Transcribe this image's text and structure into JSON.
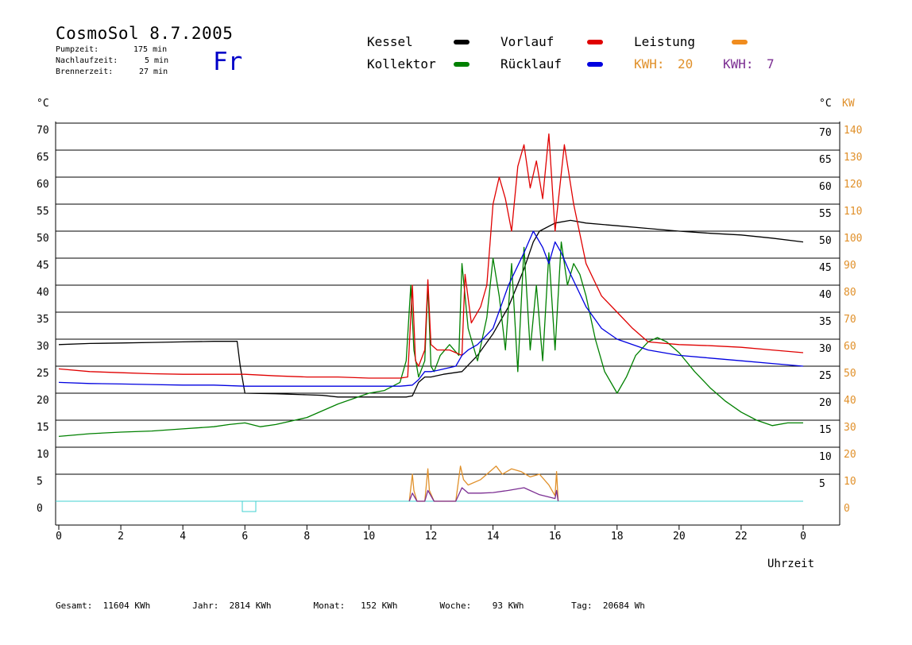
{
  "header": {
    "title": "CosmoSol 8.7.2005",
    "day": "Fr",
    "stats": [
      {
        "label": "Pumpzeit:",
        "value": "175 min"
      },
      {
        "label": "Nachlaufzeit:",
        "value": "5 min"
      },
      {
        "label": "Brennerzeit:",
        "value": "27 min"
      }
    ]
  },
  "legend": {
    "items": [
      {
        "label": "Kessel",
        "color": "#000000"
      },
      {
        "label": "Kollektor",
        "color": "#008000"
      },
      {
        "label": "Vorlauf",
        "color": "#e00000"
      },
      {
        "label": "Rücklauf",
        "color": "#0000e0"
      },
      {
        "label": "Leistung",
        "color": "#f08c1e"
      }
    ],
    "kwh_orange": {
      "label": "KWH:",
      "value": "20",
      "color": "#e0902a"
    },
    "kwh_purple": {
      "label": "KWH:",
      "value": "7",
      "color": "#7b2e92"
    }
  },
  "footer": {
    "gesamt": {
      "label": "Gesamt:",
      "value": "11604 KWh"
    },
    "jahr": {
      "label": "Jahr:",
      "value": "2814 KWh"
    },
    "monat": {
      "label": "Monat:",
      "value": "152 KWh"
    },
    "woche": {
      "label": "Woche:",
      "value": "93 KWh"
    },
    "tag": {
      "label": "Tag:",
      "value": "20684 Wh"
    }
  },
  "chart_data": {
    "type": "line",
    "xlabel": "Uhrzeit",
    "ylabel_left": "°C",
    "ylabel_right": "°C",
    "ylabel_right2": "KW",
    "xlim": [
      0,
      24
    ],
    "ylim": [
      -2,
      72
    ],
    "x_ticks": [
      "0",
      "2",
      "4",
      "6",
      "8",
      "10",
      "12",
      "14",
      "16",
      "18",
      "20",
      "22",
      "0"
    ],
    "y_ticks_left": [
      "0",
      "5",
      "10",
      "15",
      "20",
      "25",
      "30",
      "35",
      "40",
      "45",
      "50",
      "55",
      "60",
      "65",
      "70"
    ],
    "y_ticks_right": [
      "5",
      "10",
      "15",
      "20",
      "25",
      "30",
      "35",
      "40",
      "45",
      "50",
      "55",
      "60",
      "65",
      "70"
    ],
    "y_ticks_kw": [
      "0",
      "10",
      "20",
      "30",
      "40",
      "50",
      "60",
      "70",
      "80",
      "90",
      "100",
      "110",
      "120",
      "130",
      "140"
    ],
    "grid": true,
    "colors": {
      "grid": "#000000",
      "right_axis_kw": "#e0902a",
      "zero_line": "#40d0d0",
      "purple": "#7b2e92"
    },
    "series": [
      {
        "name": "Kessel",
        "color": "#000000",
        "x": [
          0,
          1,
          2,
          3,
          4,
          5,
          5.75,
          5.85,
          6,
          7,
          8,
          8.5,
          9,
          10,
          11,
          11.2,
          11.4,
          11.6,
          11.8,
          12,
          12.4,
          13,
          13.5,
          14,
          14.5,
          15,
          15.3,
          15.5,
          16,
          16.5,
          17,
          18,
          19,
          20,
          21,
          22,
          23,
          24
        ],
        "y": [
          29,
          29.2,
          29.3,
          29.4,
          29.5,
          29.6,
          29.6,
          25,
          20,
          19.9,
          19.7,
          19.6,
          19.3,
          19.3,
          19.3,
          19.3,
          19.5,
          22,
          23,
          23,
          23.5,
          24,
          27,
          31,
          36,
          43,
          48,
          50,
          51.5,
          52,
          51.5,
          51,
          50.5,
          50,
          49.6,
          49.3,
          48.7,
          48
        ]
      },
      {
        "name": "Kollektor",
        "color": "#008000",
        "x": [
          0,
          1,
          2,
          3,
          4,
          5,
          5.5,
          6,
          6.5,
          7,
          8,
          9,
          10,
          10.5,
          11,
          11.2,
          11.35,
          11.45,
          11.6,
          11.8,
          11.9,
          12,
          12.1,
          12.3,
          12.6,
          12.9,
          13,
          13.2,
          13.5,
          13.8,
          14,
          14.2,
          14.4,
          14.6,
          14.8,
          15,
          15.2,
          15.4,
          15.6,
          15.8,
          16,
          16.2,
          16.4,
          16.6,
          16.8,
          17,
          17.3,
          17.6,
          18,
          18.3,
          18.6,
          19,
          19.3,
          19.6,
          20,
          20.5,
          21,
          21.5,
          22,
          22.5,
          23,
          23.5,
          24
        ],
        "y": [
          12,
          12.5,
          12.8,
          13,
          13.4,
          13.8,
          14.2,
          14.5,
          13.8,
          14.2,
          15.5,
          18,
          20,
          20.5,
          22,
          26,
          40,
          28,
          23,
          26,
          40,
          25,
          24,
          27,
          29,
          27,
          44,
          32,
          26,
          34,
          45,
          38,
          28,
          44,
          24,
          47,
          28,
          40,
          26,
          46,
          28,
          48,
          40,
          44,
          42,
          38,
          30,
          24,
          20,
          23,
          27,
          29.5,
          30.3,
          29.5,
          27.5,
          24,
          21,
          18.5,
          16.5,
          15,
          14,
          14.5,
          14.5
        ]
      },
      {
        "name": "Vorlauf",
        "color": "#e00000",
        "x": [
          0,
          1,
          2,
          3,
          4,
          5,
          6,
          7,
          8,
          9,
          10,
          11,
          11.25,
          11.4,
          11.5,
          11.6,
          11.8,
          11.9,
          12,
          12.2,
          12.6,
          13,
          13.1,
          13.3,
          13.6,
          13.8,
          14,
          14.2,
          14.4,
          14.6,
          14.8,
          15,
          15.2,
          15.4,
          15.6,
          15.8,
          16,
          16.3,
          16.6,
          17,
          17.5,
          18,
          18.5,
          19,
          20,
          21,
          22,
          23,
          24
        ],
        "y": [
          24.5,
          24,
          23.8,
          23.6,
          23.5,
          23.5,
          23.5,
          23.2,
          23,
          23,
          22.8,
          22.8,
          23,
          40,
          26,
          25,
          28,
          41,
          29,
          28,
          28,
          27,
          42,
          33,
          36,
          40,
          55,
          60,
          56,
          50,
          62,
          66,
          58,
          63,
          56,
          68,
          50,
          66,
          55,
          44,
          38,
          35,
          32,
          29.5,
          29,
          28.8,
          28.5,
          28,
          27.5
        ]
      },
      {
        "name": "Rücklauf",
        "color": "#0000e0",
        "x": [
          0,
          1,
          2,
          3,
          4,
          5,
          6,
          7,
          8,
          9,
          10,
          11,
          11.4,
          11.6,
          11.8,
          12,
          12.2,
          12.8,
          13,
          13.2,
          13.5,
          14,
          14.5,
          15,
          15.3,
          15.6,
          15.8,
          16,
          16.2,
          16.5,
          17,
          17.5,
          18,
          19,
          20,
          21,
          22,
          23,
          24
        ],
        "y": [
          22,
          21.8,
          21.7,
          21.6,
          21.5,
          21.5,
          21.3,
          21.3,
          21.3,
          21.3,
          21.3,
          21.3,
          21.5,
          22.5,
          24,
          24,
          24.2,
          25,
          27,
          28,
          29,
          32,
          40,
          46,
          50,
          47,
          44,
          48,
          46,
          42,
          36,
          32,
          30,
          28,
          27,
          26.5,
          26,
          25.5,
          25
        ]
      },
      {
        "name": "Leistung",
        "color": "#e0902a",
        "x": [
          11.3,
          11.4,
          11.45,
          11.55,
          11.8,
          11.9,
          11.95,
          12.1,
          12.8,
          12.95,
          13.05,
          13.2,
          13.6,
          14,
          14.1,
          14.3,
          14.6,
          14.9,
          15.2,
          15.5,
          15.8,
          16,
          16.05,
          16.1
        ],
        "y": [
          0,
          5,
          2,
          0,
          0,
          6,
          2,
          0,
          0,
          6.5,
          4,
          3,
          4,
          6,
          6.5,
          5,
          6,
          5.5,
          4.5,
          5,
          3,
          1,
          5.5,
          0
        ]
      },
      {
        "name": "Leistung2",
        "color": "#7b2e92",
        "x": [
          11.3,
          11.4,
          11.55,
          11.8,
          11.9,
          12.1,
          12.8,
          13.0,
          13.2,
          13.6,
          14,
          14.5,
          15,
          15.5,
          16,
          16.05,
          16.1
        ],
        "y": [
          0,
          1.5,
          0,
          0,
          2,
          0,
          0,
          2.5,
          1.5,
          1.5,
          1.6,
          2,
          2.5,
          1.2,
          0.5,
          2,
          0
        ]
      }
    ]
  }
}
